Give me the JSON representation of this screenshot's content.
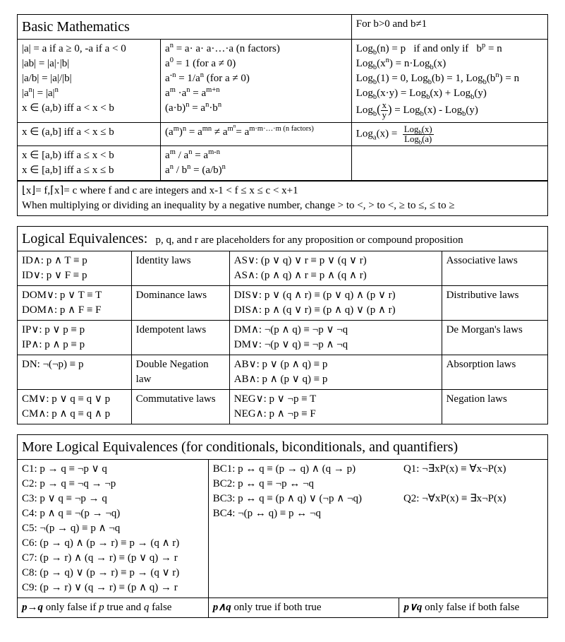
{
  "basic": {
    "title": "Basic Mathematics",
    "log_cond": "For b>0 and b≠1",
    "c1r1": "|a| = a if a ≥ 0, -a if a < 0\n|ab| = |a|·|b|\n|a/b| = |a|/|b|\n|aⁿ| = |a|ⁿ\nx ∈ (a,b) iff a < x < b",
    "c2r1": "aⁿ = a· a· a·…·a (n factors)\na⁰ = 1 (for a ≠ 0)\na⁻ⁿ = 1/aⁿ (for a ≠ 0)\naᵐ ·aⁿ = aᵐ⁺ⁿ\n(a·b)ⁿ = aⁿ·bⁿ",
    "c3r1": "Log_b(n) = p   if and only if   bᵖ = n\nLog_b(xⁿ) = n·Log_b(x)\nLog_b(1) = 0, Log_b(b) = 1, Log_b(bⁿ) = n\nLog_b(x·y) = Log_b(x) + Log_b(y)\nLog_b(x/y) = Log_b(x) - Log_b(y)",
    "c1r2": "x ∈ (a,b] iff a < x ≤ b",
    "c2r2": "(aᵐ)ⁿ = aᵐⁿ ≠ aᵐⁿ= aᵐ·ᵐ·…·ᵐ (n factors)",
    "c3r2": "Log_a(x) =  Log_b(x) / Log_b(a)",
    "c1r3": "x ∈ [a,b) iff a ≤ x < b\nx ∈ [a,b] iff a ≤ x ≤ b",
    "c2r3": "aᵐ / aⁿ = aᵐ⁻ⁿ\naⁿ / bⁿ = (a/b)ⁿ",
    "floor": "⌊x⌋= f,⌈x⌉= c where f and c are integers and x-1 < f ≤ x ≤ c < x+1\nWhen multiplying or dividing an inequality by a negative number, change > to <, > to <, ≥ to ≤, ≤ to ≥"
  },
  "le": {
    "title": "Logical Equivalences:",
    "subtitle": "p, q, and r are placeholders for any proposition or compound proposition",
    "rows": [
      {
        "a": "ID∧: p ∧ T ≡ p\nID∨: p ∨ F ≡ p",
        "b": "Identity laws",
        "c": "AS∨: (p ∨ q) ∨ r ≡ p ∨ (q ∨ r)\nAS∧: (p ∧ q) ∧ r ≡ p ∧ (q ∧ r)",
        "d": "Associative laws"
      },
      {
        "a": "DOM∨: p ∨ T ≡ T\nDOM∧: p ∧ F ≡ F",
        "b": "Dominance laws",
        "c": "DIS∨: p ∨ (q ∧ r) ≡ (p ∨ q) ∧ (p ∨ r)\nDIS∧: p ∧ (q ∨ r) ≡ (p ∧ q) ∨ (p ∧ r)",
        "d": "Distributive laws"
      },
      {
        "a": "IP∨: p ∨ p ≡ p\nIP∧: p ∧ p ≡ p",
        "b": "Idempotent laws",
        "c": "DM∧: ¬(p ∧ q) ≡ ¬p ∨ ¬q\nDM∨: ¬(p ∨ q) ≡ ¬p ∧ ¬q",
        "d": "De Morgan's laws"
      },
      {
        "a": "DN: ¬(¬p) ≡ p",
        "b": "Double Negation law",
        "c": "AB∨: p ∨ (p ∧ q) ≡ p\nAB∧: p ∧ (p ∨ q) ≡ p",
        "d": "Absorption laws"
      },
      {
        "a": "CM∨: p ∨ q ≡ q ∨ p\nCM∧: p ∧ q ≡ q ∧ p",
        "b": "Commutative laws",
        "c": "NEG∨: p ∨ ¬p ≡ T\nNEG∧: p ∧ ¬p ≡ F",
        "d": "Negation laws"
      }
    ]
  },
  "more": {
    "title": "More Logical Equivalences (for conditionals, biconditionals, and quantifiers)",
    "col1": "C1: p → q ≡ ¬p ∨ q\nC2: p → q ≡ ¬q → ¬p\nC3: p ∨ q ≡ ¬p → q\nC4: p ∧ q ≡ ¬(p → ¬q)\nC5: ¬(p → q) ≡ p ∧ ¬q\nC6: (p → q) ∧ (p → r) ≡ p → (q ∧ r)\nC7: (p → r) ∧ (q → r) ≡ (p ∨ q) → r\nC8: (p → q) ∨ (p → r) ≡ p → (q ∨ r)\nC9: (p → r) ∨ (q → r) ≡ (p ∧ q) → r",
    "col2": "BC1: p ↔ q ≡ (p → q) ∧ (q → p)\nBC2: p ↔ q ≡  ¬p ↔ ¬q\nBC3: p ↔ q ≡ (p ∧ q) ∨ (¬p ∧ ¬q)\nBC4: ¬(p ↔ q) ≡  p ↔ ¬q",
    "col3": "Q1: ¬∃xP(x) ≡ ∀x¬P(x)\n\nQ2: ¬∀xP(x) ≡ ∃x¬P(x)",
    "foot1_a": "p→q",
    "foot1_b": " only false if ",
    "foot1_c": "p",
    "foot1_d": " true and ",
    "foot1_e": "q",
    "foot1_f": " false",
    "foot2_a": "p∧q",
    "foot2_b": " only true if both true",
    "foot3_a": "p∨q",
    "foot3_b": " only false if both false"
  }
}
